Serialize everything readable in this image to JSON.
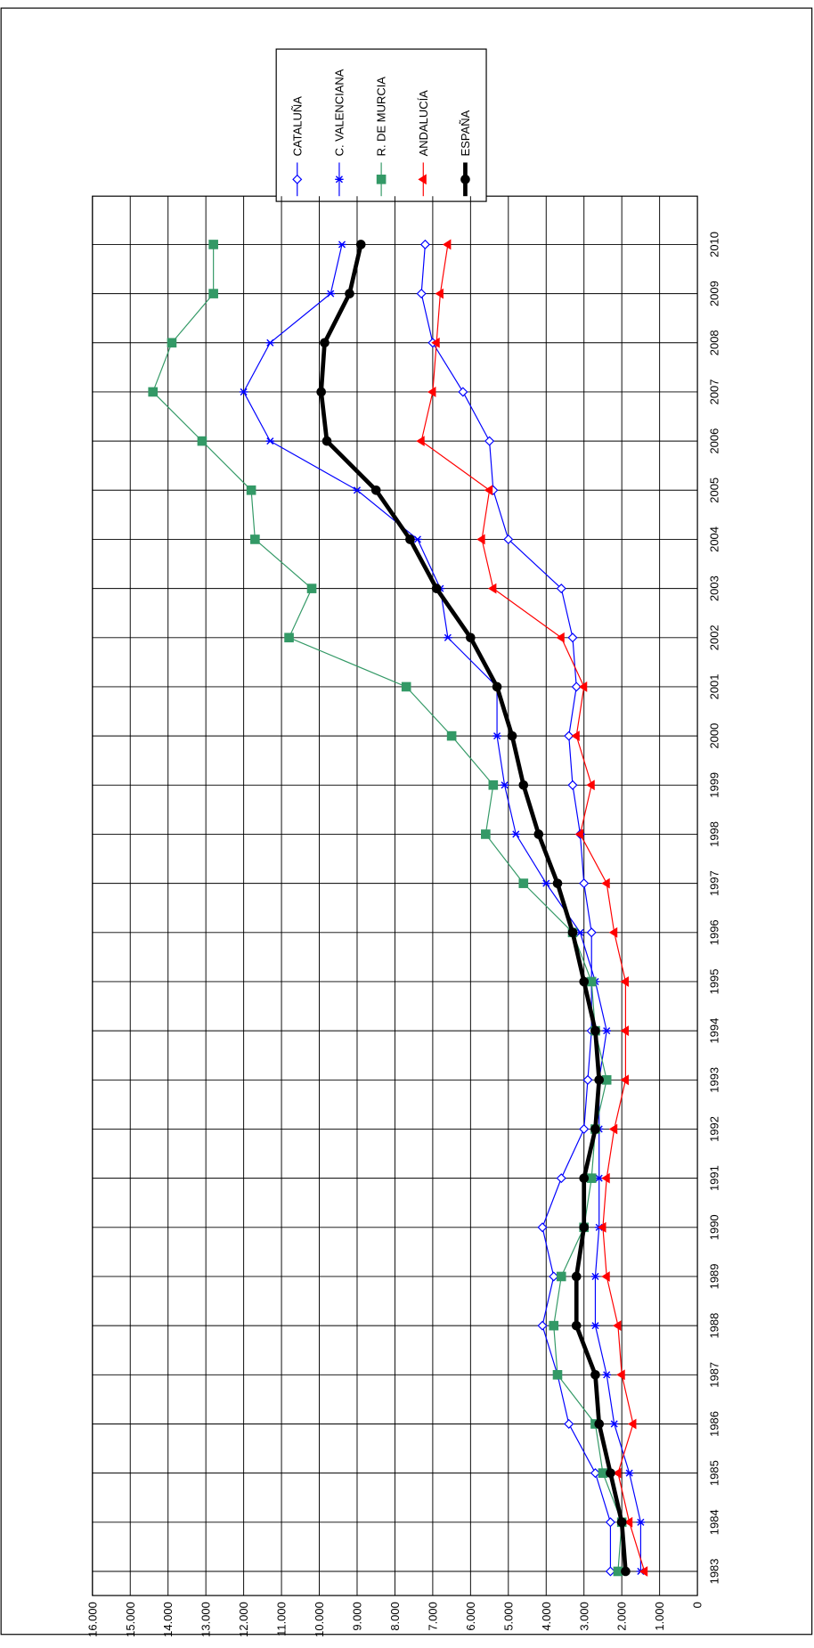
{
  "chart_data": {
    "type": "line",
    "categories": [
      "1983",
      "1984",
      "1985",
      "1986",
      "1987",
      "1988",
      "1989",
      "1990",
      "1991",
      "1992",
      "1993",
      "1994",
      "1995",
      "1996",
      "1997",
      "1998",
      "1999",
      "2000",
      "2001",
      "2002",
      "2003",
      "2004",
      "2005",
      "2006",
      "2007",
      "2008",
      "2009",
      "2010"
    ],
    "series": [
      {
        "name": "CATALUÑA",
        "color": "#0000ff",
        "marker": "diamond",
        "width": 1,
        "values": [
          2300,
          2300,
          2700,
          3400,
          3700,
          4100,
          3800,
          4100,
          3600,
          3000,
          2900,
          2800,
          2800,
          2800,
          3000,
          3100,
          3300,
          3400,
          3200,
          3300,
          3600,
          5000,
          5400,
          5500,
          6200,
          7000,
          7300,
          7200
        ]
      },
      {
        "name": "C. VALENCIANA",
        "color": "#0000ff",
        "marker": "star",
        "width": 1,
        "values": [
          1500,
          1500,
          1800,
          2200,
          2400,
          2700,
          2700,
          2600,
          2600,
          2600,
          2600,
          2400,
          2700,
          3100,
          4000,
          4800,
          5100,
          5300,
          5300,
          6600,
          6800,
          7400,
          9000,
          11300,
          12000,
          11300,
          9700,
          9400
        ]
      },
      {
        "name": "R. DE MURCIA",
        "color": "#339966",
        "marker": "square",
        "width": 1,
        "values": [
          2100,
          2000,
          2500,
          2700,
          3700,
          3800,
          3600,
          3000,
          2800,
          2700,
          2400,
          2700,
          2800,
          3300,
          4600,
          5600,
          5400,
          6500,
          7700,
          10800,
          10200,
          11700,
          11800,
          13100,
          14400,
          13900,
          12800,
          12800
        ]
      },
      {
        "name": "ANDALUCÍA",
        "color": "#ff0000",
        "marker": "triangle",
        "width": 1,
        "values": [
          1400,
          1800,
          2100,
          1700,
          2000,
          2100,
          2400,
          2500,
          2400,
          2200,
          1900,
          1900,
          1900,
          2200,
          2400,
          3100,
          2800,
          3200,
          3000,
          3600,
          5400,
          5700,
          5500,
          7300,
          7000,
          6900,
          6800,
          6600
        ]
      },
      {
        "name": "ESPAÑA",
        "color": "#000000",
        "marker": "circle",
        "width": 4,
        "values": [
          1900,
          2000,
          2300,
          2600,
          2700,
          3200,
          3200,
          3000,
          3000,
          2700,
          2600,
          2700,
          3000,
          3300,
          3700,
          4200,
          4600,
          4900,
          5300,
          6000,
          6900,
          7600,
          8500,
          9800,
          9950,
          9860,
          9200,
          8900
        ]
      }
    ],
    "ylim": [
      0,
      16000
    ],
    "yticks": [
      {
        "value": 0,
        "label": "0"
      },
      {
        "value": 1000,
        "label": "1.000"
      },
      {
        "value": 2000,
        "label": "2.000"
      },
      {
        "value": 3000,
        "label": "3.000"
      },
      {
        "value": 4000,
        "label": "4.000"
      },
      {
        "value": 5000,
        "label": "5.000"
      },
      {
        "value": 6000,
        "label": "6.000"
      },
      {
        "value": 7000,
        "label": "7.000"
      },
      {
        "value": 8000,
        "label": "8.000"
      },
      {
        "value": 9000,
        "label": "9.000"
      },
      {
        "value": 10000,
        "label": "10.000"
      },
      {
        "value": 11000,
        "label": "11.000"
      },
      {
        "value": 12000,
        "label": "12.000"
      },
      {
        "value": 13000,
        "label": "13.000"
      },
      {
        "value": 14000,
        "label": "14.000"
      },
      {
        "value": 15000,
        "label": "15.000"
      },
      {
        "value": 16000,
        "label": "16.000"
      }
    ],
    "grid": true
  }
}
